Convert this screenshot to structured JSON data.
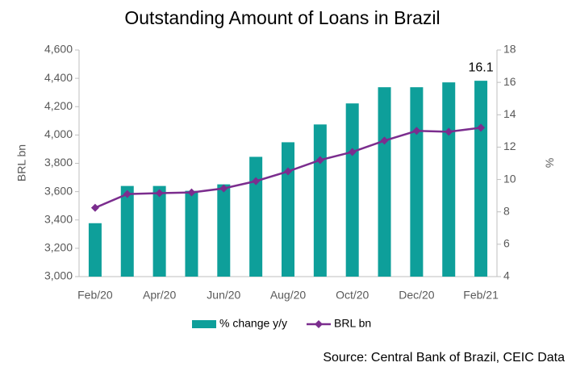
{
  "chart_data": {
    "type": "bar-line",
    "title": "Outstanding Amount of Loans in Brazil",
    "source": "Source: Central Bank of Brazil, CEIC Data",
    "ylabel": "BRL bn",
    "y2label": "%",
    "categories": [
      "Feb/20",
      null,
      "Apr/20",
      null,
      "Jun/20",
      null,
      "Aug/20",
      null,
      "Oct/20",
      null,
      "Dec/20",
      null,
      "Feb/21"
    ],
    "ylim": [
      3000,
      4600
    ],
    "yticks": [
      {
        "value": 3000,
        "label": "3,000"
      },
      {
        "value": 3200,
        "label": "3,200"
      },
      {
        "value": 3400,
        "label": "3,400"
      },
      {
        "value": 3600,
        "label": "3,600"
      },
      {
        "value": 3800,
        "label": "3,800"
      },
      {
        "value": 4000,
        "label": "4,000"
      },
      {
        "value": 4200,
        "label": "4,200"
      },
      {
        "value": 4400,
        "label": "4,400"
      },
      {
        "value": 4600,
        "label": "4,600"
      }
    ],
    "y2lim": [
      4,
      18
    ],
    "y2ticks": [
      4,
      6,
      8,
      10,
      12,
      14,
      16,
      18
    ],
    "series": [
      {
        "name": "% change y/y",
        "type": "bar",
        "axis": "y2",
        "color": "#0e9f9a",
        "values": [
          7.3,
          9.6,
          9.6,
          9.3,
          9.7,
          11.4,
          12.3,
          13.4,
          14.7,
          15.7,
          15.7,
          16.0,
          16.1
        ],
        "value_labels": [
          null,
          null,
          null,
          null,
          null,
          null,
          null,
          null,
          null,
          null,
          null,
          null,
          "16.1"
        ]
      },
      {
        "name": "BRL bn",
        "type": "line",
        "axis": "y",
        "color": "#7b2d8e",
        "values": [
          3486,
          3583,
          3589,
          3594,
          3623,
          3674,
          3743,
          3823,
          3880,
          3960,
          4029,
          4023,
          4051
        ]
      }
    ]
  }
}
